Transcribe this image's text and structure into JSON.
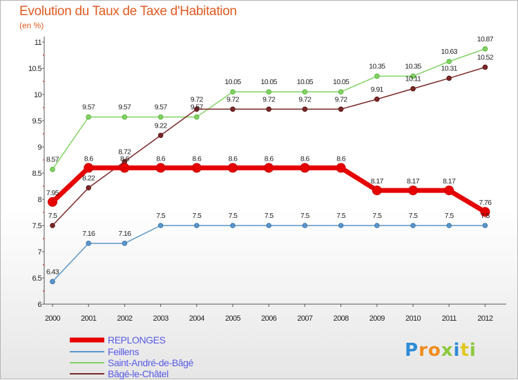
{
  "title": "Evolution du Taux de Taxe d'Habitation",
  "unit_label": "(en %)",
  "logo": {
    "letters": [
      "P",
      "r",
      "o",
      "x",
      "i",
      "t",
      "i"
    ],
    "colors": [
      "#2e8bd6",
      "#f08c1e",
      "#f08c1e",
      "#8cc83c",
      "#2e8bd6",
      "#e0c81e",
      "#8cc83c"
    ]
  },
  "chart_data": {
    "type": "line",
    "title": "Evolution du Taux de Taxe d'Habitation",
    "ylabel": "(en %)",
    "xlabel": "",
    "ylim": [
      6,
      11
    ],
    "yticks": [
      "6",
      "6.5",
      "7",
      "7.5",
      "8",
      "8.5",
      "9",
      "9.5",
      "10",
      "10.5",
      "11"
    ],
    "ytick_values": [
      6,
      6.5,
      7,
      7.5,
      8,
      8.5,
      9,
      9.5,
      10,
      10.5,
      11
    ],
    "categories": [
      "2000",
      "2001",
      "2002",
      "2003",
      "2004",
      "2005",
      "2006",
      "2007",
      "2008",
      "2009",
      "2010",
      "2011",
      "2012"
    ],
    "grid": false,
    "legend_position": "bottom-left",
    "series": [
      {
        "name": "REPLONGES",
        "color": "#e60000",
        "values": [
          7.95,
          8.6,
          8.6,
          8.6,
          8.6,
          8.6,
          8.6,
          8.6,
          8.6,
          8.17,
          8.17,
          8.17,
          7.76
        ],
        "labels": [
          "7.95",
          "8.6",
          "8.6",
          "8.6",
          "8.6",
          "8.6",
          "8.6",
          "8.6",
          "8.6",
          "8.17",
          "8.17",
          "8.17",
          "7.76"
        ]
      },
      {
        "name": "Feillens",
        "color": "#5a96c8",
        "values": [
          6.43,
          7.16,
          7.16,
          7.5,
          7.5,
          7.5,
          7.5,
          7.5,
          7.5,
          7.5,
          7.5,
          7.5,
          7.5
        ],
        "labels": [
          "6.43",
          "7.16",
          "7.16",
          "7.5",
          "7.5",
          "7.5",
          "7.5",
          "7.5",
          "7.5",
          "7.5",
          "7.5",
          "7.5",
          "7.5"
        ]
      },
      {
        "name": "Saint-André-de-Bâgé",
        "color": "#82d264",
        "values": [
          8.57,
          9.57,
          9.57,
          9.57,
          9.57,
          10.05,
          10.05,
          10.05,
          10.05,
          10.35,
          10.35,
          10.63,
          10.87
        ],
        "labels": [
          "8.57",
          "9.57",
          "9.57",
          "9.57",
          "9.57",
          "10.05",
          "10.05",
          "10.05",
          "10.05",
          "10.35",
          "10.35",
          "10.63",
          "10.87"
        ]
      },
      {
        "name": "Bâgé-le-Châtel",
        "color": "#7a2828",
        "values": [
          7.5,
          8.22,
          8.72,
          9.22,
          9.72,
          9.72,
          9.72,
          9.72,
          9.72,
          9.91,
          10.11,
          10.31,
          10.52
        ],
        "labels": [
          "7.5",
          "8.22",
          "8.72",
          "9.22",
          "9.72",
          "9.72",
          "9.72",
          "9.72",
          "9.72",
          "9.91",
          "10.11",
          "10.31",
          "10.52"
        ]
      }
    ]
  }
}
